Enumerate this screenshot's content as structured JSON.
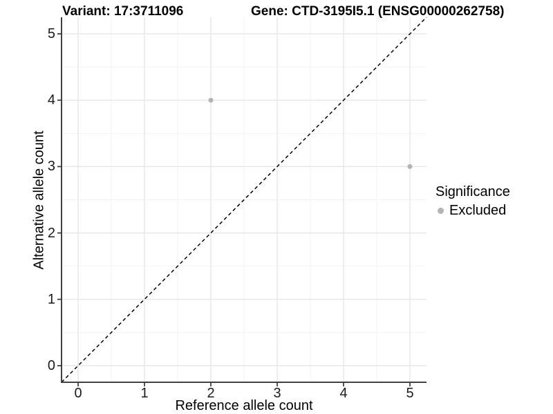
{
  "titles": {
    "variant": "Variant: 17:3711096",
    "gene": "Gene: CTD-3195I5.1 (ENSG00000262758)"
  },
  "axes": {
    "x": {
      "label": "Reference allele count"
    },
    "y": {
      "label": "Alternative allele count"
    }
  },
  "legend": {
    "title": "Significance",
    "items": [
      {
        "label": "Excluded",
        "color": "#b3b3b3"
      }
    ]
  },
  "chart_data": {
    "type": "scatter",
    "title_left": "Variant: 17:3711096",
    "title_right": "Gene: CTD-3195I5.1 (ENSG00000262758)",
    "xlabel": "Reference allele count",
    "ylabel": "Alternative allele count",
    "xlim": [
      -0.25,
      5.25
    ],
    "ylim": [
      -0.25,
      5.25
    ],
    "x_major_ticks": [
      0,
      1,
      2,
      3,
      4,
      5
    ],
    "y_major_ticks": [
      0,
      1,
      2,
      3,
      4,
      5
    ],
    "x_minor_ticks": [
      0.5,
      1.5,
      2.5,
      3.5,
      4.5
    ],
    "y_minor_ticks": [
      0.5,
      1.5,
      2.5,
      3.5,
      4.5
    ],
    "grid": true,
    "legend_position": "right",
    "series": [
      {
        "name": "Excluded",
        "color": "#b3b3b3",
        "points": [
          [
            2,
            4
          ],
          [
            5,
            3
          ]
        ]
      }
    ],
    "reference_line": {
      "type": "identity",
      "from": [
        -0.25,
        -0.25
      ],
      "to": [
        5.25,
        5.25
      ],
      "style": "dashed",
      "color": "#000000"
    }
  },
  "colors": {
    "background": "#ffffff",
    "grid_major": "#e5e5e5",
    "grid_minor": "#f2f2f2",
    "axis": "#404040",
    "point": "#b3b3b3",
    "text": "#000000"
  }
}
